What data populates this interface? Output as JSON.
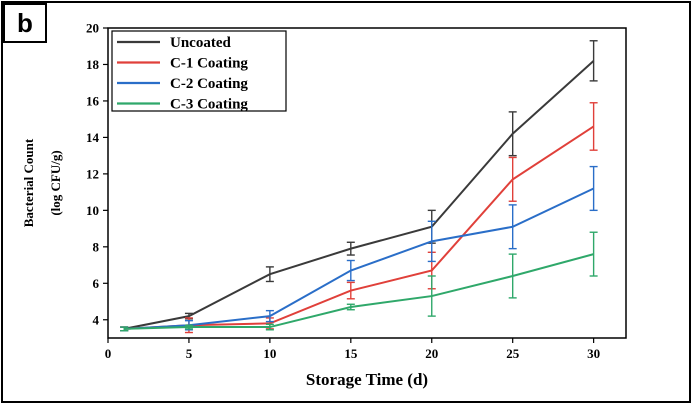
{
  "panel_label": "b",
  "chart_data": {
    "type": "line",
    "xlabel": "Storage Time (d)",
    "ylabel": "Bacterial Count",
    "ylabel_unit": "(log CFU/g)",
    "xlim": [
      0,
      32
    ],
    "ylim": [
      3,
      20
    ],
    "xticks": [
      0,
      5,
      10,
      15,
      20,
      25,
      30
    ],
    "yticks": [
      4,
      6,
      8,
      10,
      12,
      14,
      16,
      18,
      20
    ],
    "grid": false,
    "legend_position": "top-left",
    "x": [
      1,
      5,
      10,
      15,
      20,
      25,
      30
    ],
    "series": [
      {
        "name": "Uncoated",
        "color": "#3a3a3a",
        "values": [
          3.5,
          4.2,
          6.5,
          7.9,
          9.1,
          14.2,
          18.2
        ],
        "errors": [
          0.1,
          0.15,
          0.4,
          0.35,
          0.9,
          1.2,
          1.1
        ]
      },
      {
        "name": "C-1 Coating",
        "color": "#e0403a",
        "values": [
          3.5,
          3.7,
          3.8,
          5.6,
          6.7,
          11.7,
          14.6
        ],
        "errors": [
          0.1,
          0.4,
          0.3,
          0.45,
          1.0,
          1.2,
          1.3
        ]
      },
      {
        "name": "C-2 Coating",
        "color": "#2a6ec8",
        "values": [
          3.5,
          3.7,
          4.2,
          6.7,
          8.3,
          9.1,
          11.2
        ],
        "errors": [
          0.1,
          0.25,
          0.3,
          0.55,
          1.1,
          1.2,
          1.2
        ]
      },
      {
        "name": "C-3 Coating",
        "color": "#2fa86a",
        "values": [
          3.5,
          3.6,
          3.6,
          4.7,
          5.3,
          6.4,
          7.6
        ],
        "errors": [
          0.1,
          0.1,
          0.15,
          0.15,
          1.1,
          1.2,
          1.2
        ]
      }
    ]
  }
}
